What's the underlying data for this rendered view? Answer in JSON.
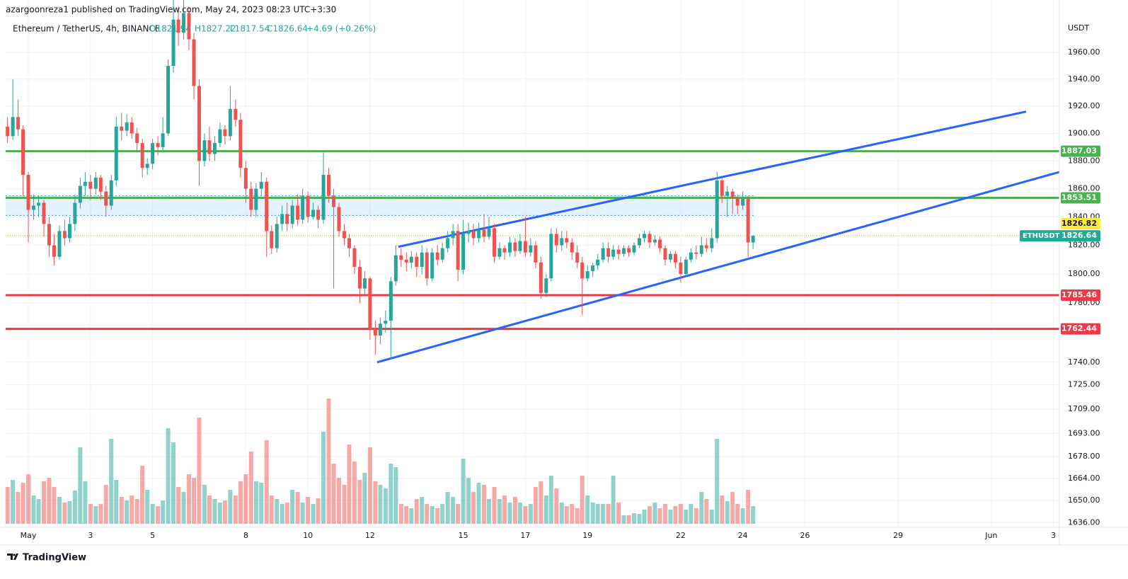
{
  "chart_data": {
    "type": "candlestick",
    "header": "azargoonreza1 published on TradingView.com, May 24, 2023 08:23 UTC+3:30",
    "title": "Ethereum / TetherUS, 4h, BINANCE",
    "ohlc": [
      "O1821.94",
      "H1827.22",
      "L1817.54",
      "C1826.64",
      "+4.69 (+0.26%)"
    ],
    "currency": "USDT",
    "footer": "TradingView",
    "log_scale": true,
    "grid": true,
    "up_color": "#26a69a",
    "down_color": "#ef5350",
    "xlim": [
      0.27,
      34.19
    ],
    "xticks": [
      {
        "value": 1,
        "label": "May"
      },
      3,
      5,
      8,
      10,
      12,
      15,
      17,
      19,
      22,
      24,
      26,
      29,
      {
        "value": 32,
        "label": "Jun"
      },
      {
        "value": 34,
        "label": "3"
      }
    ],
    "ylim": [
      1633,
      2000
    ],
    "yticks": [
      {
        "value": 1960,
        "label": "1960.00"
      },
      {
        "value": 1940,
        "label": "1940.00"
      },
      {
        "value": 1920,
        "label": "1920.00"
      },
      {
        "value": 1900,
        "label": "1900.00"
      },
      {
        "value": 1880,
        "label": "1880.00"
      },
      {
        "value": 1860,
        "label": "1860.00"
      },
      {
        "value": 1840,
        "label": "1840.00"
      },
      {
        "value": 1820,
        "label": "1820.00"
      },
      {
        "value": 1800,
        "label": "1800.00"
      },
      {
        "value": 1780,
        "label": "1780.00"
      },
      {
        "value": 1740,
        "label": "1740.00"
      },
      {
        "value": 1725,
        "label": "1725.00"
      },
      {
        "value": 1709,
        "label": "1709.00"
      },
      {
        "value": 1693,
        "label": "1693.00"
      },
      {
        "value": 1678,
        "label": "1678.00"
      },
      {
        "value": 1664,
        "label": "1664.00"
      },
      {
        "value": 1650,
        "label": "1650.00"
      },
      {
        "value": 1636,
        "label": "1636.00"
      }
    ],
    "levels": [
      {
        "value": 1887.03,
        "color": "#4caf50"
      },
      {
        "value": 1853.51,
        "color": "#4caf50"
      },
      {
        "value": 1785.46,
        "color": "#f23645"
      },
      {
        "value": 1762.44,
        "color": "#f23645"
      }
    ],
    "marker_label": {
      "value": 1826.82,
      "color": "#ffeb3b"
    },
    "last_price": {
      "name": "ETHUSDT",
      "value": 1826.64,
      "color": "#22ab94"
    },
    "zone": {
      "from": 1841,
      "to": 1855,
      "end": 24.35,
      "color": "#2196f3"
    },
    "trendlines": [
      {
        "x": [
          12.91,
          33.12
        ],
        "y": [
          1819,
          1916
        ],
        "color": "#2962ff"
      },
      {
        "x": [
          12.23,
          34.19
        ],
        "y": [
          1740,
          1872
        ],
        "color": "#2962ff"
      }
    ],
    "candles": [
      [
        0.33,
        1905,
        1912,
        1893,
        1898,
        52
      ],
      [
        0.5,
        1898,
        1940,
        1895,
        1912,
        62
      ],
      [
        0.67,
        1912,
        1925,
        1898,
        1903,
        45
      ],
      [
        0.83,
        1903,
        1906,
        1855,
        1870,
        58
      ],
      [
        1,
        1870,
        1872,
        1822,
        1845,
        70
      ],
      [
        1.17,
        1845,
        1856,
        1838,
        1848,
        40
      ],
      [
        1.33,
        1848,
        1855,
        1840,
        1850,
        35
      ],
      [
        1.5,
        1850,
        1852,
        1826,
        1835,
        60
      ],
      [
        1.67,
        1835,
        1840,
        1812,
        1820,
        65
      ],
      [
        1.83,
        1820,
        1828,
        1806,
        1812,
        52
      ],
      [
        2,
        1812,
        1834,
        1810,
        1830,
        38
      ],
      [
        2.17,
        1830,
        1838,
        1820,
        1825,
        30
      ],
      [
        2.33,
        1825,
        1840,
        1822,
        1835,
        32
      ],
      [
        2.5,
        1835,
        1856,
        1830,
        1850,
        47
      ],
      [
        2.67,
        1850,
        1868,
        1846,
        1862,
        108
      ],
      [
        2.83,
        1862,
        1872,
        1855,
        1865,
        60
      ],
      [
        3,
        1865,
        1870,
        1852,
        1860,
        28
      ],
      [
        3.17,
        1860,
        1872,
        1856,
        1868,
        25
      ],
      [
        3.33,
        1868,
        1870,
        1852,
        1858,
        28
      ],
      [
        3.5,
        1858,
        1862,
        1840,
        1848,
        55
      ],
      [
        3.67,
        1848,
        1870,
        1845,
        1866,
        120
      ],
      [
        3.83,
        1866,
        1912,
        1862,
        1905,
        62
      ],
      [
        4,
        1905,
        1915,
        1895,
        1902,
        38
      ],
      [
        4.17,
        1902,
        1914,
        1898,
        1908,
        33
      ],
      [
        4.33,
        1908,
        1912,
        1896,
        1900,
        40
      ],
      [
        4.5,
        1900,
        1904,
        1886,
        1893,
        35
      ],
      [
        4.67,
        1893,
        1896,
        1868,
        1875,
        82
      ],
      [
        4.83,
        1875,
        1882,
        1870,
        1878,
        48
      ],
      [
        5,
        1878,
        1896,
        1874,
        1893,
        28
      ],
      [
        5.17,
        1893,
        1898,
        1884,
        1890,
        25
      ],
      [
        5.33,
        1890,
        1912,
        1886,
        1900,
        33
      ],
      [
        5.5,
        1900,
        1955,
        1898,
        1950,
        135
      ],
      [
        5.67,
        1950,
        2010,
        1945,
        1985,
        115
      ],
      [
        5.83,
        1985,
        1995,
        1965,
        1975,
        52
      ],
      [
        6,
        1975,
        2005,
        1970,
        1990,
        45
      ],
      [
        6.17,
        1990,
        1995,
        1962,
        1970,
        70
      ],
      [
        6.33,
        1970,
        1975,
        1925,
        1935,
        65
      ],
      [
        6.5,
        1935,
        1940,
        1862,
        1880,
        150
      ],
      [
        6.67,
        1880,
        1900,
        1876,
        1895,
        55
      ],
      [
        6.83,
        1895,
        1905,
        1880,
        1885,
        40
      ],
      [
        7,
        1885,
        1898,
        1880,
        1893,
        35
      ],
      [
        7.17,
        1893,
        1908,
        1890,
        1903,
        30
      ],
      [
        7.33,
        1903,
        1906,
        1892,
        1898,
        33
      ],
      [
        7.5,
        1898,
        1935,
        1895,
        1918,
        48
      ],
      [
        7.67,
        1918,
        1925,
        1905,
        1910,
        40
      ],
      [
        7.83,
        1910,
        1915,
        1868,
        1875,
        60
      ],
      [
        8,
        1875,
        1880,
        1850,
        1860,
        70
      ],
      [
        8.17,
        1860,
        1865,
        1840,
        1845,
        102
      ],
      [
        8.33,
        1845,
        1864,
        1840,
        1860,
        60
      ],
      [
        8.5,
        1860,
        1872,
        1855,
        1865,
        58
      ],
      [
        8.67,
        1865,
        1868,
        1812,
        1830,
        118
      ],
      [
        8.83,
        1830,
        1834,
        1814,
        1818,
        40
      ],
      [
        9,
        1818,
        1840,
        1815,
        1835,
        35
      ],
      [
        9.17,
        1835,
        1848,
        1830,
        1842,
        28
      ],
      [
        9.33,
        1842,
        1850,
        1830,
        1835,
        30
      ],
      [
        9.5,
        1835,
        1852,
        1832,
        1848,
        48
      ],
      [
        9.67,
        1848,
        1856,
        1834,
        1838,
        45
      ],
      [
        9.83,
        1838,
        1860,
        1835,
        1855,
        30
      ],
      [
        10,
        1855,
        1858,
        1836,
        1840,
        38
      ],
      [
        10.17,
        1840,
        1850,
        1838,
        1845,
        28
      ],
      [
        10.33,
        1845,
        1848,
        1832,
        1838,
        36
      ],
      [
        10.5,
        1838,
        1886,
        1835,
        1870,
        130
      ],
      [
        10.67,
        1870,
        1875,
        1850,
        1855,
        177
      ],
      [
        10.83,
        1855,
        1860,
        1790,
        1847,
        85
      ],
      [
        11,
        1847,
        1850,
        1826,
        1830,
        65
      ],
      [
        11.17,
        1830,
        1835,
        1820,
        1825,
        55
      ],
      [
        11.33,
        1825,
        1828,
        1812,
        1818,
        112
      ],
      [
        11.5,
        1818,
        1820,
        1800,
        1805,
        88
      ],
      [
        11.67,
        1805,
        1810,
        1780,
        1790,
        62
      ],
      [
        11.83,
        1790,
        1802,
        1785,
        1797,
        72
      ],
      [
        12,
        1797,
        1798,
        1755,
        1762,
        108
      ],
      [
        12.17,
        1762,
        1768,
        1745,
        1758,
        60
      ],
      [
        12.33,
        1758,
        1770,
        1752,
        1766,
        55
      ],
      [
        12.5,
        1766,
        1775,
        1760,
        1768,
        50
      ],
      [
        12.67,
        1768,
        1798,
        1742,
        1795,
        85
      ],
      [
        12.83,
        1795,
        1820,
        1792,
        1813,
        80
      ],
      [
        13,
        1813,
        1818,
        1805,
        1810,
        28
      ],
      [
        13.17,
        1810,
        1815,
        1802,
        1808,
        25
      ],
      [
        13.33,
        1808,
        1816,
        1804,
        1812,
        22
      ],
      [
        13.5,
        1812,
        1815,
        1798,
        1805,
        35
      ],
      [
        13.67,
        1805,
        1820,
        1800,
        1815,
        38
      ],
      [
        13.83,
        1815,
        1818,
        1792,
        1797,
        28
      ],
      [
        14,
        1797,
        1818,
        1795,
        1815,
        25
      ],
      [
        14.17,
        1815,
        1820,
        1806,
        1810,
        22
      ],
      [
        14.33,
        1810,
        1822,
        1808,
        1818,
        28
      ],
      [
        14.5,
        1818,
        1830,
        1815,
        1825,
        45
      ],
      [
        14.67,
        1825,
        1835,
        1820,
        1830,
        38
      ],
      [
        14.83,
        1830,
        1835,
        1795,
        1803,
        28
      ],
      [
        15,
        1803,
        1838,
        1800,
        1828,
        92
      ],
      [
        15.17,
        1828,
        1836,
        1822,
        1830,
        65
      ],
      [
        15.33,
        1830,
        1835,
        1820,
        1825,
        45
      ],
      [
        15.5,
        1825,
        1836,
        1822,
        1831,
        58
      ],
      [
        15.67,
        1831,
        1842,
        1822,
        1826,
        55
      ],
      [
        15.83,
        1826,
        1840,
        1824,
        1832,
        35
      ],
      [
        16,
        1832,
        1835,
        1808,
        1812,
        52
      ],
      [
        16.17,
        1812,
        1822,
        1810,
        1818,
        35
      ],
      [
        16.33,
        1818,
        1820,
        1810,
        1815,
        40
      ],
      [
        16.5,
        1815,
        1826,
        1812,
        1822,
        30
      ],
      [
        16.67,
        1822,
        1825,
        1812,
        1816,
        38
      ],
      [
        16.83,
        1816,
        1828,
        1814,
        1823,
        30
      ],
      [
        17,
        1823,
        1840,
        1812,
        1815,
        25
      ],
      [
        17.17,
        1815,
        1825,
        1812,
        1820,
        28
      ],
      [
        17.33,
        1820,
        1823,
        1804,
        1808,
        52
      ],
      [
        17.5,
        1808,
        1812,
        1783,
        1787,
        60
      ],
      [
        17.67,
        1787,
        1800,
        1784,
        1797,
        40
      ],
      [
        17.83,
        1797,
        1832,
        1795,
        1828,
        68
      ],
      [
        18,
        1828,
        1832,
        1815,
        1820,
        50
      ],
      [
        18.17,
        1820,
        1830,
        1816,
        1825,
        30
      ],
      [
        18.33,
        1825,
        1830,
        1818,
        1822,
        25
      ],
      [
        18.5,
        1822,
        1825,
        1810,
        1815,
        28
      ],
      [
        18.67,
        1815,
        1820,
        1804,
        1808,
        22
      ],
      [
        18.83,
        1808,
        1812,
        1772,
        1797,
        68
      ],
      [
        19,
        1797,
        1806,
        1795,
        1802,
        40
      ],
      [
        19.17,
        1802,
        1808,
        1798,
        1806,
        30
      ],
      [
        19.33,
        1806,
        1814,
        1803,
        1810,
        28
      ],
      [
        19.5,
        1810,
        1822,
        1808,
        1818,
        28
      ],
      [
        19.67,
        1818,
        1822,
        1808,
        1812,
        28
      ],
      [
        19.83,
        1812,
        1820,
        1810,
        1817,
        68
      ],
      [
        20,
        1817,
        1820,
        1810,
        1814,
        30
      ],
      [
        20.17,
        1814,
        1820,
        1812,
        1818,
        12
      ],
      [
        20.33,
        1818,
        1820,
        1812,
        1815,
        12
      ],
      [
        20.5,
        1815,
        1822,
        1813,
        1820,
        15
      ],
      [
        20.67,
        1820,
        1828,
        1818,
        1825,
        14
      ],
      [
        20.83,
        1825,
        1830,
        1822,
        1828,
        20
      ],
      [
        21,
        1828,
        1830,
        1818,
        1822,
        25
      ],
      [
        21.17,
        1822,
        1827,
        1820,
        1824,
        30
      ],
      [
        21.33,
        1824,
        1826,
        1815,
        1818,
        22
      ],
      [
        21.5,
        1818,
        1820,
        1806,
        1810,
        28
      ],
      [
        21.67,
        1810,
        1816,
        1808,
        1814,
        20
      ],
      [
        21.83,
        1814,
        1816,
        1804,
        1808,
        25
      ],
      [
        22,
        1808,
        1812,
        1794,
        1800,
        28
      ],
      [
        22.17,
        1800,
        1812,
        1798,
        1810,
        20
      ],
      [
        22.33,
        1810,
        1818,
        1808,
        1815,
        28
      ],
      [
        22.5,
        1815,
        1820,
        1810,
        1814,
        22
      ],
      [
        22.67,
        1814,
        1826,
        1812,
        1820,
        45
      ],
      [
        22.83,
        1820,
        1825,
        1815,
        1818,
        35
      ],
      [
        23,
        1818,
        1832,
        1815,
        1825,
        20
      ],
      [
        23.17,
        1825,
        1872,
        1822,
        1866,
        120
      ],
      [
        23.33,
        1866,
        1868,
        1850,
        1855,
        40
      ],
      [
        23.5,
        1855,
        1862,
        1840,
        1858,
        32
      ],
      [
        23.67,
        1858,
        1860,
        1842,
        1853,
        45
      ],
      [
        23.83,
        1853,
        1856,
        1842,
        1848,
        28
      ],
      [
        24,
        1848,
        1858,
        1845,
        1853,
        22
      ],
      [
        24.17,
        1853,
        1855,
        1812,
        1822,
        48
      ],
      [
        24.33,
        1821.94,
        1827.22,
        1817.54,
        1826.64,
        25
      ]
    ]
  }
}
